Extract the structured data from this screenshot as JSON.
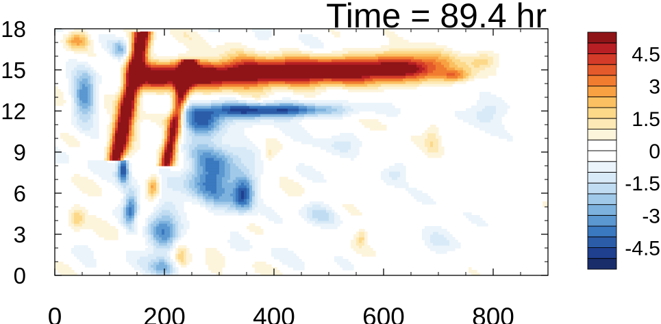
{
  "title": "Time = 89.4 hr",
  "chart_data": {
    "type": "heatmap",
    "title": "Time = 89.4 hr",
    "xlabel": "",
    "ylabel": "",
    "xlim": [
      0,
      900
    ],
    "ylim": [
      0,
      18
    ],
    "x_ticks": [
      0,
      200,
      400,
      600,
      800
    ],
    "x_tick_labels": [
      "0",
      "200",
      "400",
      "600",
      "800"
    ],
    "y_ticks": [
      0,
      3,
      6,
      9,
      12,
      15,
      18
    ],
    "y_tick_labels": [
      "0",
      "3",
      "6",
      "9",
      "12",
      "15",
      "18"
    ],
    "colorbar": {
      "levels": [
        -5.5,
        -5,
        -4.5,
        -4,
        -3.5,
        -3,
        -2.5,
        -2,
        -1.5,
        -1,
        -0.5,
        0,
        0.5,
        1,
        1.5,
        2,
        2.5,
        3,
        3.5,
        4,
        4.5,
        5,
        5.5
      ],
      "tick_values": [
        -4.5,
        -3,
        -1.5,
        0,
        1.5,
        3,
        4.5
      ],
      "tick_labels": [
        "-4.5",
        "-3",
        "-1.5",
        "0",
        "1.5",
        "3",
        "4.5"
      ],
      "colors": [
        "#1a2d6b",
        "#1f3f8f",
        "#2b5ca8",
        "#3a78bf",
        "#5b97d0",
        "#7db2de",
        "#a0c9e9",
        "#c0dcf2",
        "#d8eaf7",
        "#ebf4fb",
        "#ffffff",
        "#ffffff",
        "#fdf4dc",
        "#fde9b5",
        "#fcd889",
        "#fbc061",
        "#f8a142",
        "#f17c30",
        "#e55a2a",
        "#d43b28",
        "#b71f24",
        "#8e1418"
      ]
    },
    "features": [
      {
        "name": "upper positive plume",
        "x": [
          110,
          780
        ],
        "y": [
          13,
          16.5
        ],
        "peak": 6
      },
      {
        "name": "left tilted positive band",
        "x": [
          110,
          170
        ],
        "y": [
          8.5,
          17
        ],
        "peak": 6
      },
      {
        "name": "second tilted positive band",
        "x": [
          200,
          260
        ],
        "y": [
          8,
          15.5
        ],
        "peak": 5
      },
      {
        "name": "negative band below plume",
        "x": [
          240,
          560
        ],
        "y": [
          11.5,
          13
        ],
        "peak": -5
      },
      {
        "name": "lower negative region",
        "x": [
          130,
          370
        ],
        "y": [
          0,
          11
        ],
        "peak": -5
      }
    ]
  }
}
